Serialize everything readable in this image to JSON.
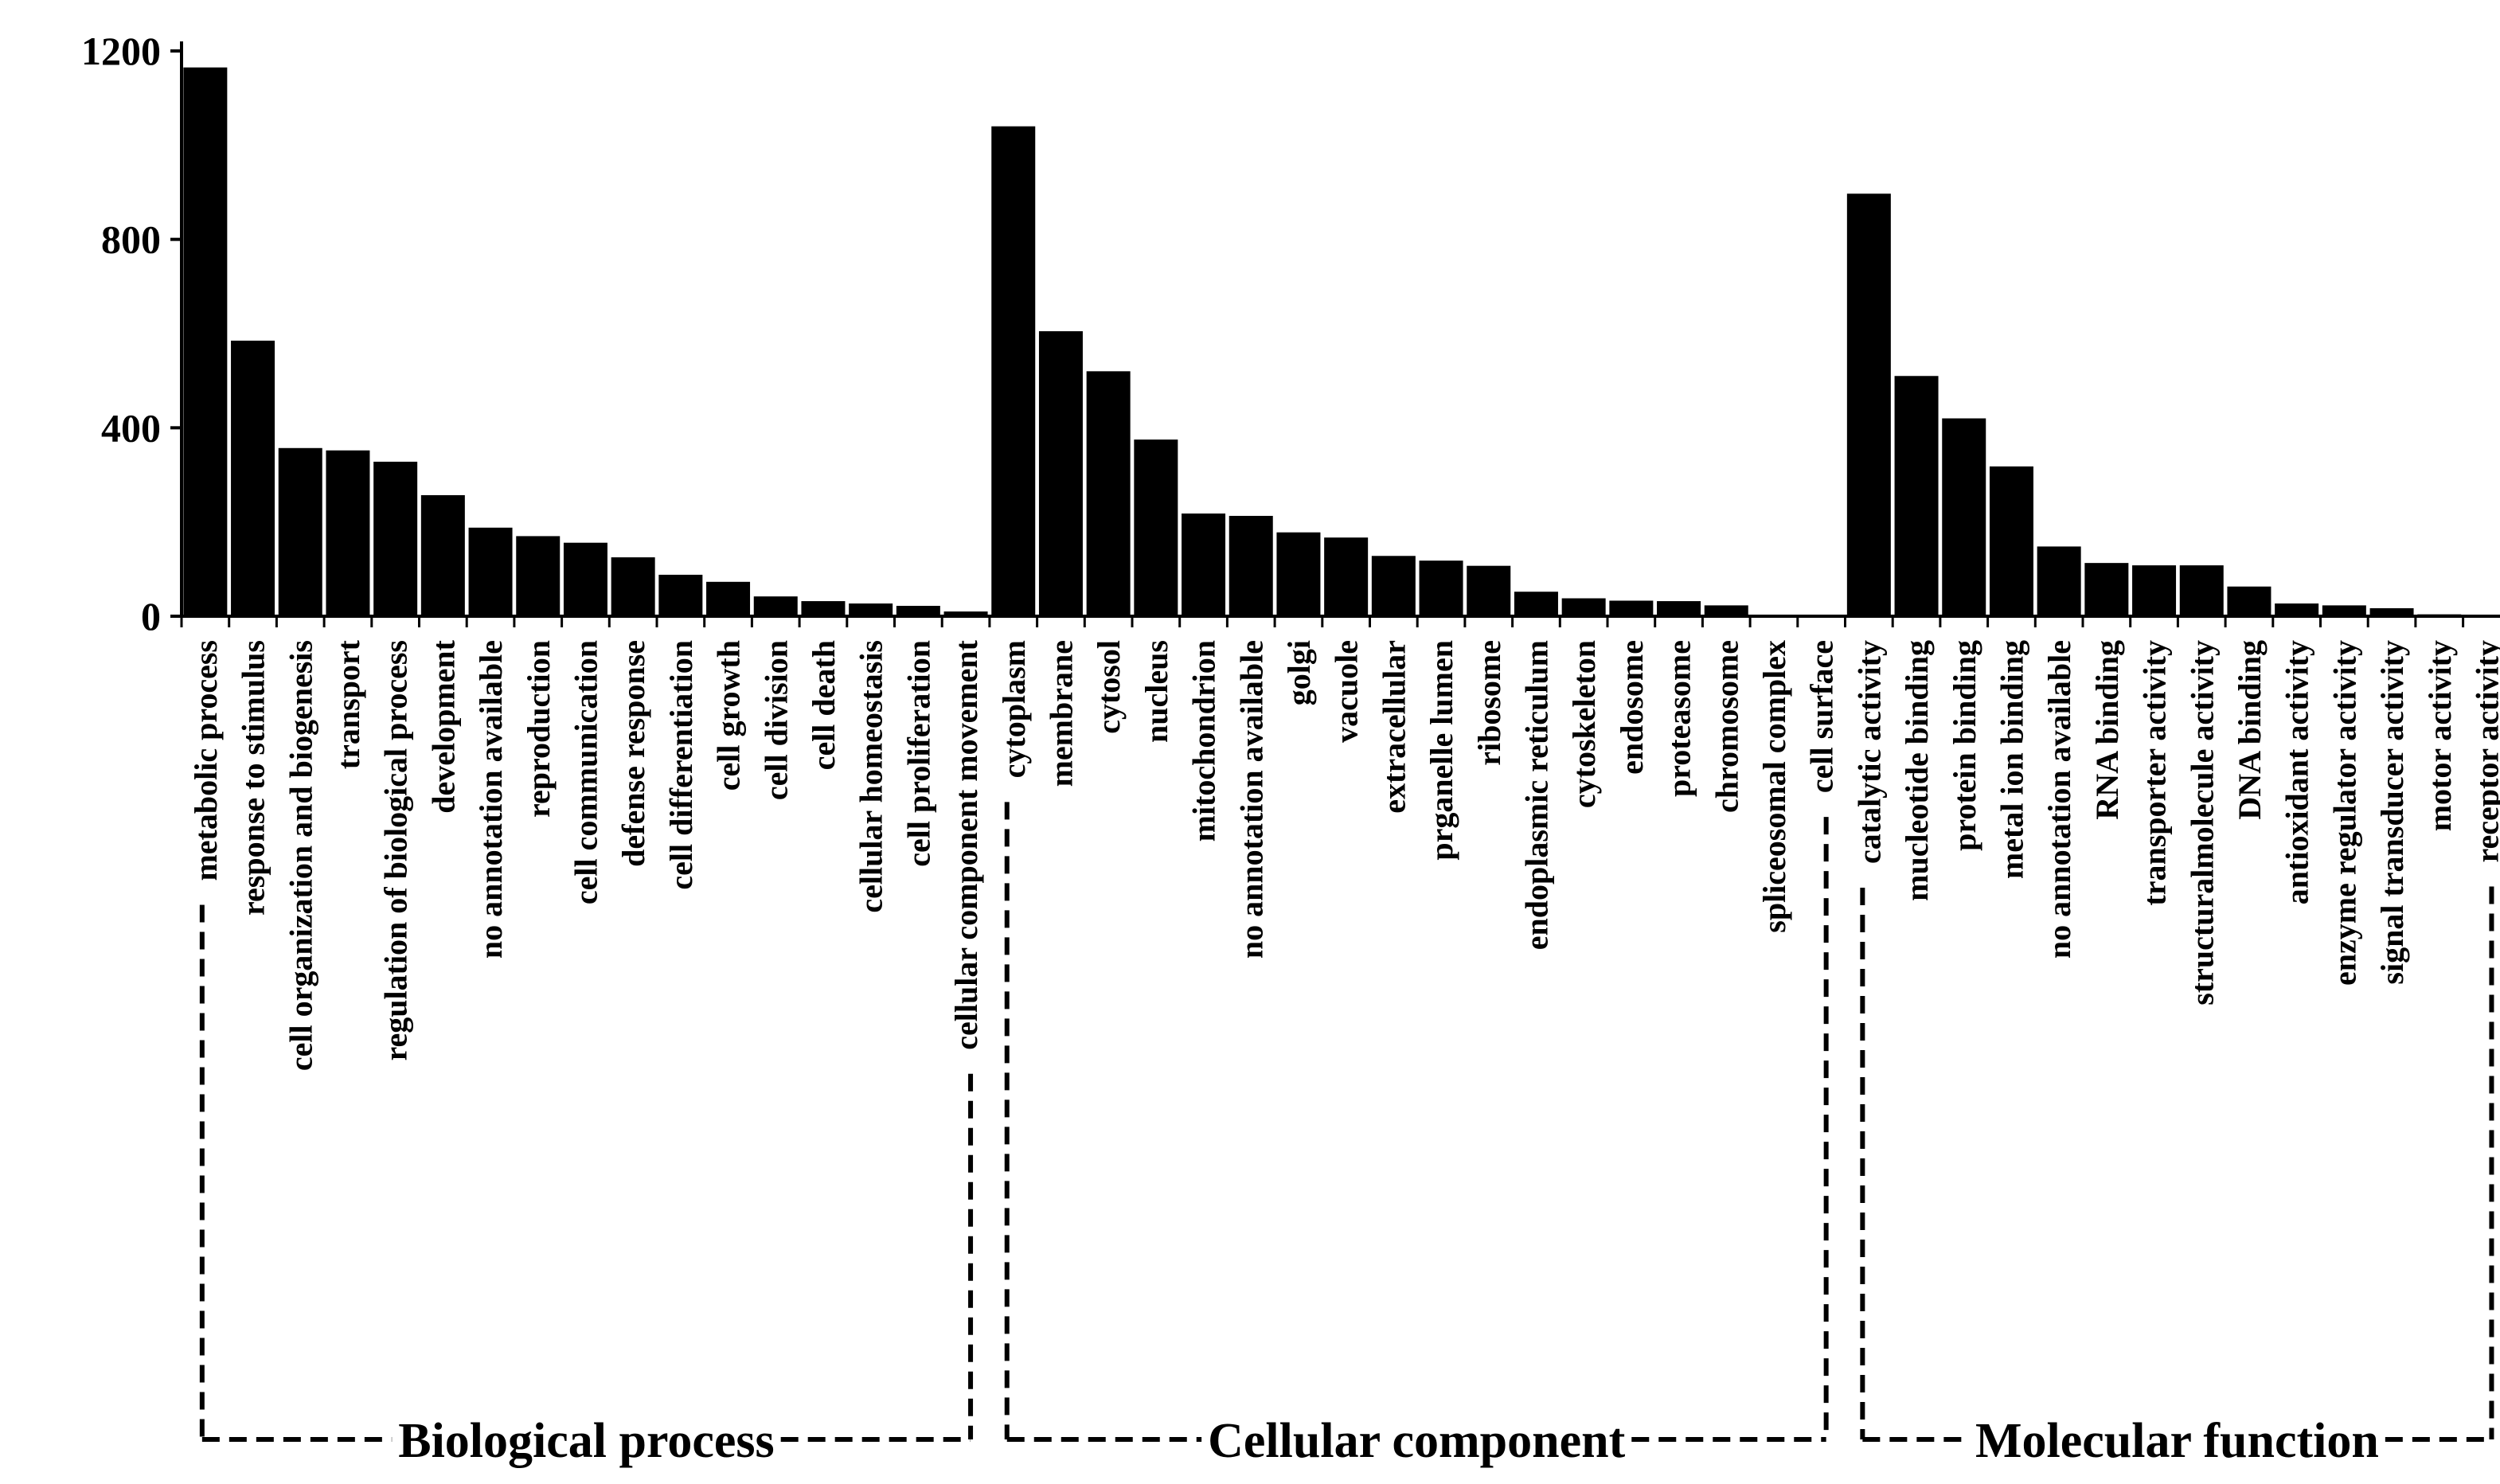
{
  "chart_data": {
    "type": "bar",
    "title": "",
    "xlabel": "",
    "ylabel": "",
    "ylim": [
      0,
      1200
    ],
    "yticks": [
      0,
      400,
      800,
      1200
    ],
    "colors": {
      "bar": "#000000",
      "axis": "#000000",
      "background": "#ffffff"
    },
    "groups": [
      {
        "name": "Biological process",
        "categories": [
          "metabolic process",
          "response to stimulus",
          "cell organization and biogenesis",
          "transport",
          "regulation of biological process",
          "development",
          "no annotation available",
          "reproduction",
          "cell communication",
          "defense response",
          "cell differentiation",
          "cell growth",
          "cell division",
          "cell death",
          "cellular homeostasis",
          "cell proliferation",
          "cellular component movement"
        ],
        "values": [
          1165,
          585,
          357,
          352,
          328,
          257,
          188,
          170,
          156,
          125,
          88,
          73,
          42,
          32,
          27,
          22,
          10
        ]
      },
      {
        "name": "Cellular component",
        "categories": [
          "cytoplasm",
          "membrane",
          "cytosol",
          "nucleus",
          "mitochondrion",
          "no annotation available",
          "golgi",
          "vacuole",
          "extracellular",
          "prganelle lumen",
          "ribosome",
          "endoplasmic reticulum",
          "cytoskeleton",
          "endosome",
          "proteasome",
          "chromosome",
          "spliceosomal complex",
          "cell surface"
        ],
        "values": [
          1040,
          605,
          520,
          375,
          218,
          213,
          178,
          167,
          128,
          118,
          107,
          52,
          38,
          33,
          32,
          23,
          3,
          2
        ]
      },
      {
        "name": "Molecular function",
        "categories": [
          "catalytic activity",
          "mucleotide binding",
          "protein binding",
          "metal ion binding",
          "no annotation available",
          "RNA binding",
          "transporter activity",
          "structuralmolecule activity",
          "DNA binding",
          "antioxidant activity",
          "enzyme regulator activity",
          "signal transducer activity",
          "motor activity",
          "receptor activity"
        ],
        "values": [
          897,
          510,
          420,
          318,
          148,
          113,
          108,
          108,
          63,
          27,
          23,
          17,
          4,
          3
        ]
      }
    ]
  }
}
